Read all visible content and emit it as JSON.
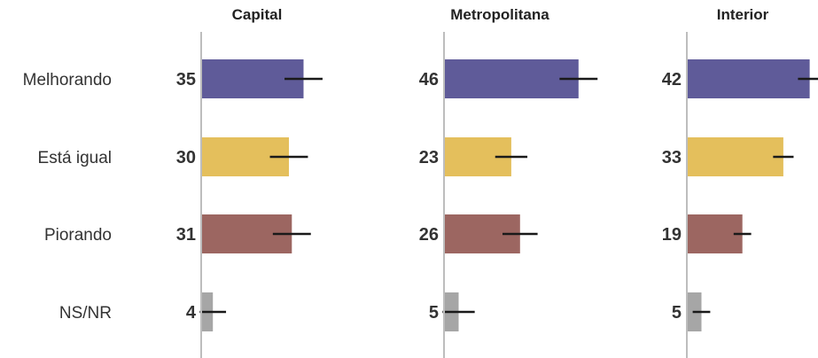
{
  "chart_data": {
    "type": "bar",
    "orientation": "horizontal",
    "categories": [
      "Melhorando",
      "Está igual",
      "Piorando",
      "NS/NR"
    ],
    "colors": [
      "#5f5b99",
      "#e4bf5c",
      "#9c6661",
      "#a6a6a6"
    ],
    "xlim": [
      0,
      55
    ],
    "grid": false,
    "legend": "none",
    "panels": [
      {
        "title": "Capital",
        "values": [
          35,
          30,
          31,
          4
        ],
        "error": [
          6.5,
          6.5,
          6.5,
          4.5
        ]
      },
      {
        "title": "Metropolitana",
        "values": [
          46,
          23,
          26,
          5
        ],
        "error": [
          6.5,
          5.5,
          6.0,
          5.5
        ]
      },
      {
        "title": "Interior",
        "values": [
          42,
          33,
          19,
          5
        ],
        "error": [
          4.0,
          3.5,
          3.0,
          3.0
        ]
      }
    ]
  }
}
